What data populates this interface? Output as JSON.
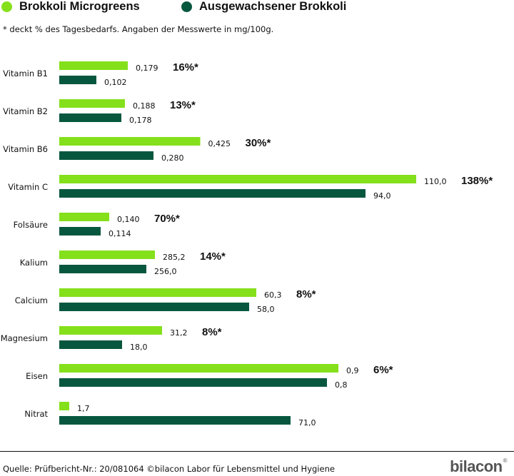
{
  "legend": {
    "series1": {
      "label": "Brokkoli Microgreens",
      "color": "#84e01b"
    },
    "series2": {
      "label": "Ausgewachsener Brokkoli",
      "color": "#07573f"
    }
  },
  "note": "* deckt % des Tagesbedarfs. Angaben der Messwerte in mg/100g.",
  "source": "Quelle: Prüfbericht-Nr.: 20/081064 ©bilacon Labor für Lebensmittel und Hygiene",
  "logo": {
    "text": "bilacon",
    "mark": "®"
  },
  "chart_data": {
    "type": "bar",
    "orientation": "horizontal",
    "title": "",
    "unit": "mg/100g (bar lengths not on a common scale)",
    "categories": [
      "Vitamin B1",
      "Vitamin B2",
      "Vitamin B6",
      "Vitamin C",
      "Folsäure",
      "Kalium",
      "Calcium",
      "Magnesium",
      "Eisen",
      "Nitrat"
    ],
    "series": [
      {
        "name": "Brokkoli Microgreens",
        "color": "#84e01b",
        "values": [
          0.179,
          0.188,
          0.425,
          110.0,
          0.14,
          285.2,
          60.3,
          31.2,
          0.9,
          1.7
        ],
        "labels": [
          "0,179",
          "0,188",
          "0,425",
          "110,0",
          "0,140",
          "285,2",
          "60,3",
          "31,2",
          "0,9",
          "1,7"
        ],
        "bar_fraction": [
          0.192,
          0.184,
          0.395,
          1.0,
          0.14,
          0.268,
          0.552,
          0.288,
          0.782,
          0.028
        ]
      },
      {
        "name": "Ausgewachsener Brokkoli",
        "color": "#07573f",
        "values": [
          0.102,
          0.178,
          0.28,
          94.0,
          0.114,
          256.0,
          58.0,
          18.0,
          0.8,
          71.0
        ],
        "labels": [
          "0,102",
          "0,178",
          "0,280",
          "94,0",
          "0,114",
          "256,0",
          "58,0",
          "18,0",
          "0,8",
          "71,0"
        ],
        "bar_fraction": [
          0.104,
          0.174,
          0.264,
          0.858,
          0.116,
          0.244,
          0.532,
          0.176,
          0.75,
          0.648
        ]
      }
    ],
    "daily_percent": [
      "16%*",
      "13%*",
      "30%*",
      "138%*",
      "70%*",
      "14%*",
      "8%*",
      "8%*",
      "6%*",
      ""
    ]
  }
}
